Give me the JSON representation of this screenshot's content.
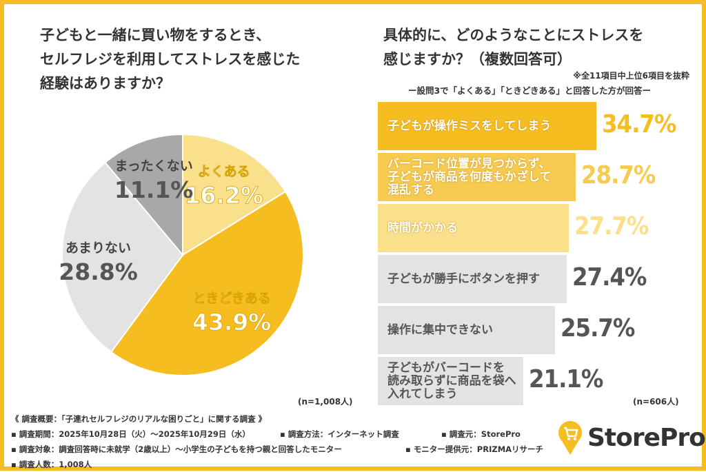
{
  "colors": {
    "frame": "#f5bd1f",
    "dark_yellow": "#f5bd1f",
    "mid_yellow": "#f7cb4f",
    "light_yellow": "#fae08a",
    "light_gray": "#e3e3e3",
    "gray": "#a8a8a8"
  },
  "chart_data": [
    {
      "type": "pie",
      "title": "子どもと一緒に買い物をするとき、セルフレジを利用してストレスを感じた経験はありますか？",
      "title_lines": [
        "子どもと一緒に買い物をするとき、",
        "セルフレジを利用してストレスを感じた",
        "経験はありますか？"
      ],
      "start": "12 o'clock, clockwise",
      "slices": [
        {
          "label": "よくある",
          "value": 16.2,
          "display": "16.2%",
          "color": "#fae08a"
        },
        {
          "label": "ときどきある",
          "value": 43.9,
          "display": "43.9%",
          "color": "#f5bd1f"
        },
        {
          "label": "あまりない",
          "value": 28.8,
          "display": "28.8%",
          "color": "#e3e3e3"
        },
        {
          "label": "まったくない",
          "value": 11.1,
          "display": "11.1%",
          "color": "#a8a8a8"
        }
      ],
      "sample": "(n=1,008人)"
    },
    {
      "type": "bar",
      "orientation": "horizontal",
      "title": "具体的に、どのようなことにストレスを感じますか？（複数回答可）",
      "title_lines": [
        "具体的に、どのようなことにストレスを",
        "感じますか？（複数回答可）"
      ],
      "note": "※全11項目中上位6項目を抜粋",
      "subtitle": "ー設問3で「よくある」「ときどきある」と回答した方が回答ー",
      "unit": "%",
      "bars": [
        {
          "label": "子どもが操作ミスをしてしまう",
          "value": 34.7,
          "display": "34.7%",
          "color": "#f5bd1f",
          "text": "y"
        },
        {
          "label": "バーコード位置が見つからず、\n子どもが商品を何度もかざして\n混乱する",
          "value": 28.7,
          "display": "28.7%",
          "color": "#f7cb4f",
          "text": "y"
        },
        {
          "label": "時間がかかる",
          "value": 27.7,
          "display": "27.7%",
          "color": "#fae08a",
          "text": "y"
        },
        {
          "label": "子どもが勝手にボタンを押す",
          "value": 27.4,
          "display": "27.4%",
          "color": "#e3e3e3",
          "text": "g"
        },
        {
          "label": "操作に集中できない",
          "value": 25.7,
          "display": "25.7%",
          "color": "#e3e3e3",
          "text": "g"
        },
        {
          "label": "子どもがバーコードを\n読み取らずに商品を袋へ\n入れてしまう",
          "value": 21.1,
          "display": "21.1%",
          "color": "#e3e3e3",
          "text": "g"
        }
      ],
      "sample": "(n=606人)"
    }
  ],
  "summary": {
    "title": "《 調査概要：「子連れセルフレジのリアルな困りごと」に関する調査 》",
    "period": "▪ 調査期間：2025年10月28日（火）～2025年10月29日（水）",
    "method": "▪ 調査方法：インターネット調査",
    "source": "▪ 調査元：StorePro",
    "target": "▪ 調査対象：調査回答時に未就学（2歳以上）～小学生の子どもを持つ親と回答したモニター",
    "provider": "▪ モニター提供元：PRIZMAリサーチ",
    "count": "▪ 調査人数：1,008人"
  },
  "logo": {
    "text": "StorePro",
    "icon": "cart-pin-icon"
  }
}
